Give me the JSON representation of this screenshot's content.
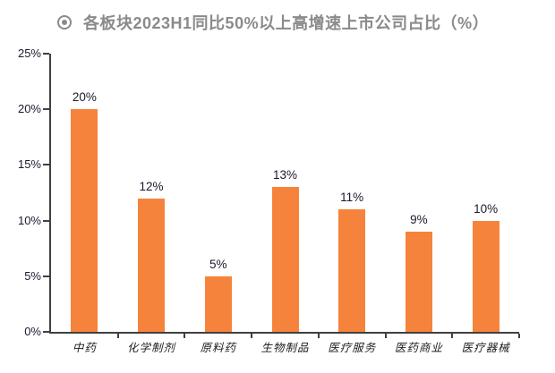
{
  "header": {
    "bullet_icon": "target-bullet-icon",
    "title": "各板块2023H1同比50%以上高增速上市公司占比（%）"
  },
  "colors": {
    "bar": "#f6833c",
    "axis": "#404040",
    "tick_label": "#1a1a2e",
    "title": "#8a8a8a",
    "background": "#ffffff"
  },
  "chart_data": {
    "type": "bar",
    "title": "各板块2023H1同比50%以上高增速上市公司占比（%）",
    "categories": [
      "中药",
      "化学制剂",
      "原料药",
      "生物制品",
      "医疗服务",
      "医药商业",
      "医疗器械"
    ],
    "values": [
      20,
      12,
      5,
      13,
      11,
      9,
      10
    ],
    "value_labels": [
      "20%",
      "12%",
      "5%",
      "13%",
      "11%",
      "9%",
      "10%"
    ],
    "xlabel": "",
    "ylabel": "",
    "ylim": [
      0,
      25
    ],
    "yticks": [
      0,
      5,
      10,
      15,
      20,
      25
    ],
    "ytick_labels": [
      "0%",
      "5%",
      "10%",
      "15%",
      "20%",
      "25%"
    ],
    "grid": false,
    "legend": null
  }
}
